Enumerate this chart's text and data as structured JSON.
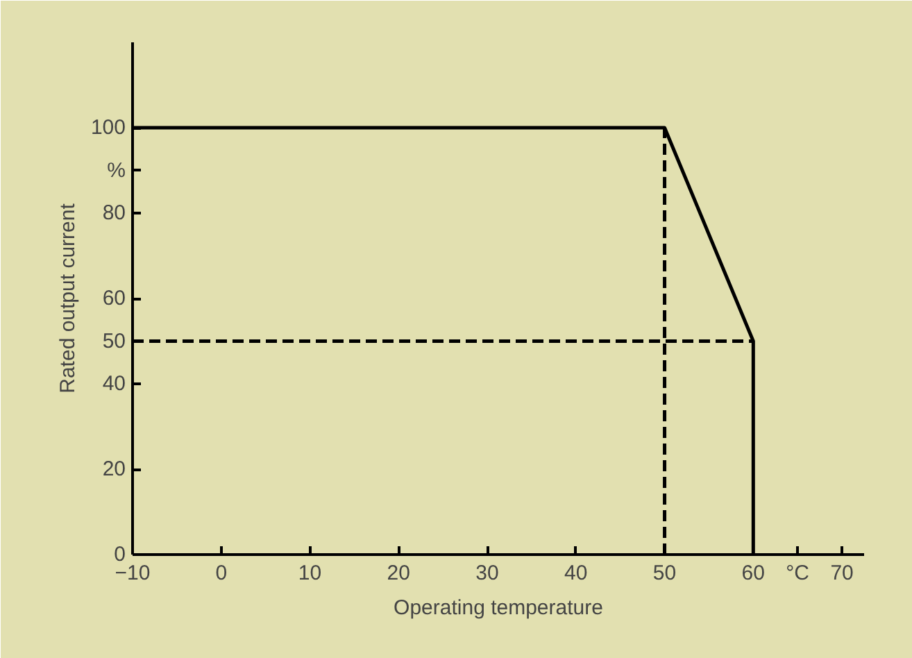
{
  "chart_data": {
    "type": "line",
    "xlabel": "Operating temperature",
    "ylabel": "Rated output current",
    "xlim": [
      -10,
      72.5
    ],
    "ylim": [
      0,
      120
    ],
    "xticks": [
      -10,
      0,
      10,
      20,
      30,
      40,
      50,
      60,
      {
        "value": 65,
        "label": "°C"
      },
      70
    ],
    "yticks": [
      0,
      20,
      40,
      50,
      60,
      80,
      {
        "value": 90,
        "label": "%"
      },
      100
    ],
    "grid": false,
    "marker": "none",
    "series": [
      {
        "color": "#000000",
        "x": [
          -10,
          50,
          60,
          60
        ],
        "values": [
          100,
          100,
          50,
          0
        ],
        "line_style": "solid"
      },
      {
        "color": "#000000",
        "x": [
          50,
          50
        ],
        "values": [
          0,
          100
        ],
        "line_style": "dashed"
      },
      {
        "color": "#000000",
        "x": [
          -10,
          60
        ],
        "values": [
          50,
          50
        ],
        "line_style": "dashed"
      }
    ]
  }
}
